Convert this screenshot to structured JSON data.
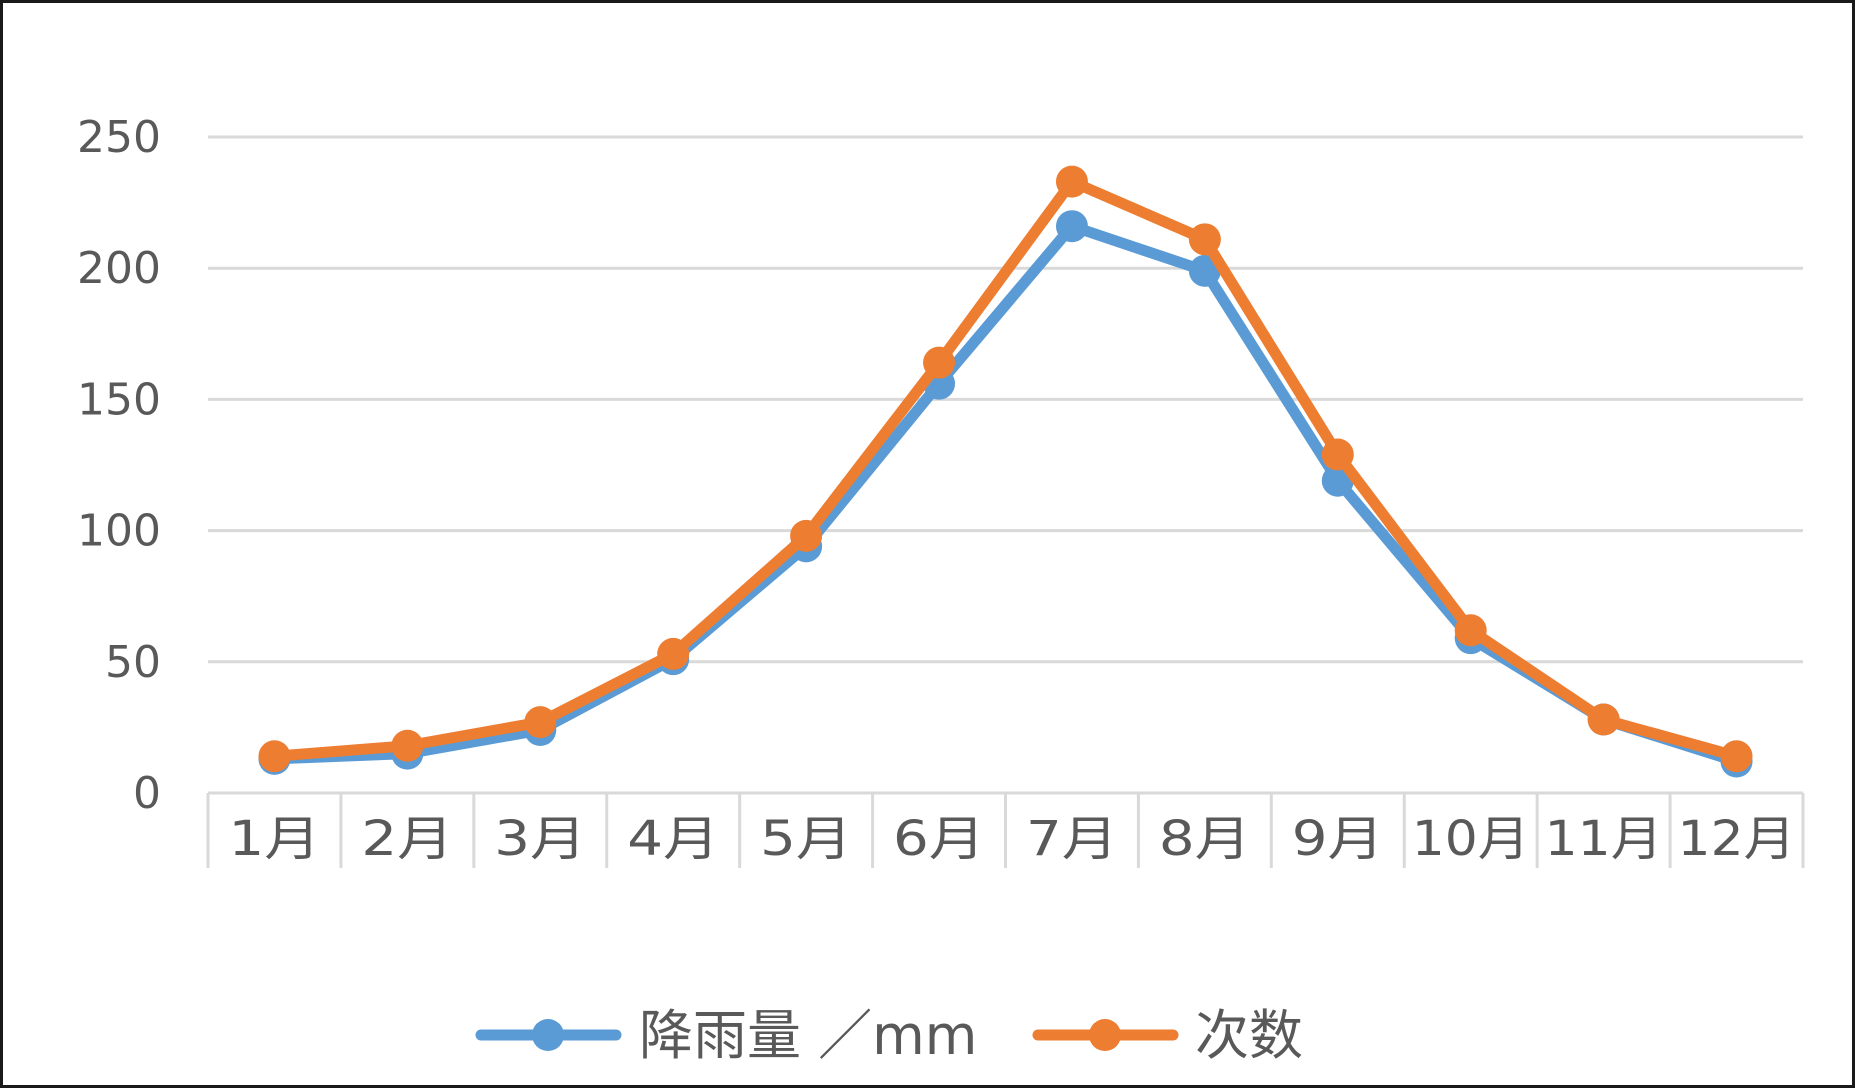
{
  "chart_data": {
    "type": "line",
    "categories": [
      "1月",
      "2月",
      "3月",
      "4月",
      "5月",
      "6月",
      "7月",
      "8月",
      "9月",
      "10月",
      "11月",
      "12月"
    ],
    "series": [
      {
        "name": "降雨量 ／mm",
        "color": "#5b9bd5",
        "values": [
          13,
          15,
          24,
          51,
          94,
          156,
          216,
          199,
          119,
          59,
          28,
          12
        ]
      },
      {
        "name": "次数",
        "color": "#ed7d31",
        "values": [
          14,
          18,
          27,
          53,
          98,
          164,
          233,
          211,
          129,
          62,
          28,
          14
        ]
      }
    ],
    "ylim": [
      0,
      250
    ],
    "yticks": [
      0,
      50,
      100,
      150,
      200,
      250
    ],
    "ytick_labels": [
      "0",
      "50",
      "100",
      "150",
      "200",
      "250"
    ],
    "grid": true,
    "legend_position": "bottom",
    "title": "",
    "xlabel": "",
    "ylabel": ""
  }
}
